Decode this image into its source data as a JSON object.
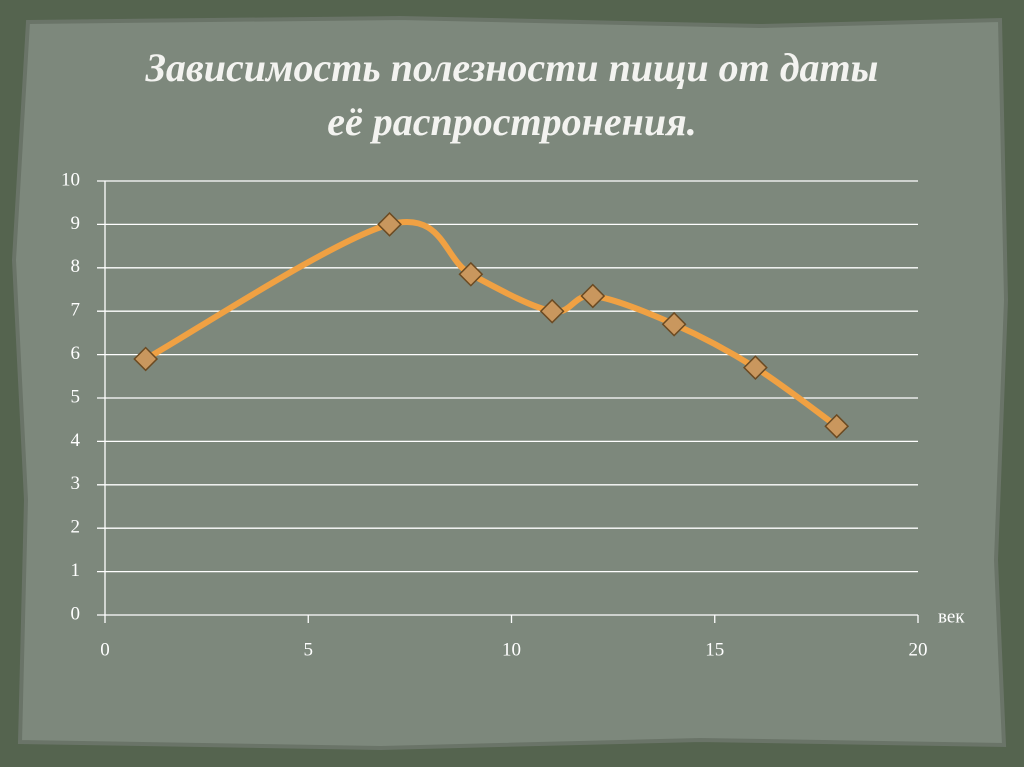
{
  "chart_data": {
    "type": "line",
    "smooth": true,
    "title": [
      "Зависимость полезности пищи от даты",
      "её распростронения."
    ],
    "x_label": "век",
    "x": [
      1,
      7,
      9,
      11,
      12,
      14,
      16,
      18
    ],
    "values": [
      5.9,
      9,
      7.85,
      7,
      7.35,
      6.7,
      5.7,
      4.35
    ],
    "color": "#f0a143",
    "marker_color": "#c9975e",
    "xlim": [
      0,
      20
    ],
    "xticks": [
      0,
      5,
      10,
      15,
      20
    ],
    "ylim": [
      0,
      10
    ],
    "yticks": [
      0,
      1,
      2,
      3,
      4,
      5,
      6,
      7,
      8,
      9,
      10
    ],
    "grid": true
  }
}
